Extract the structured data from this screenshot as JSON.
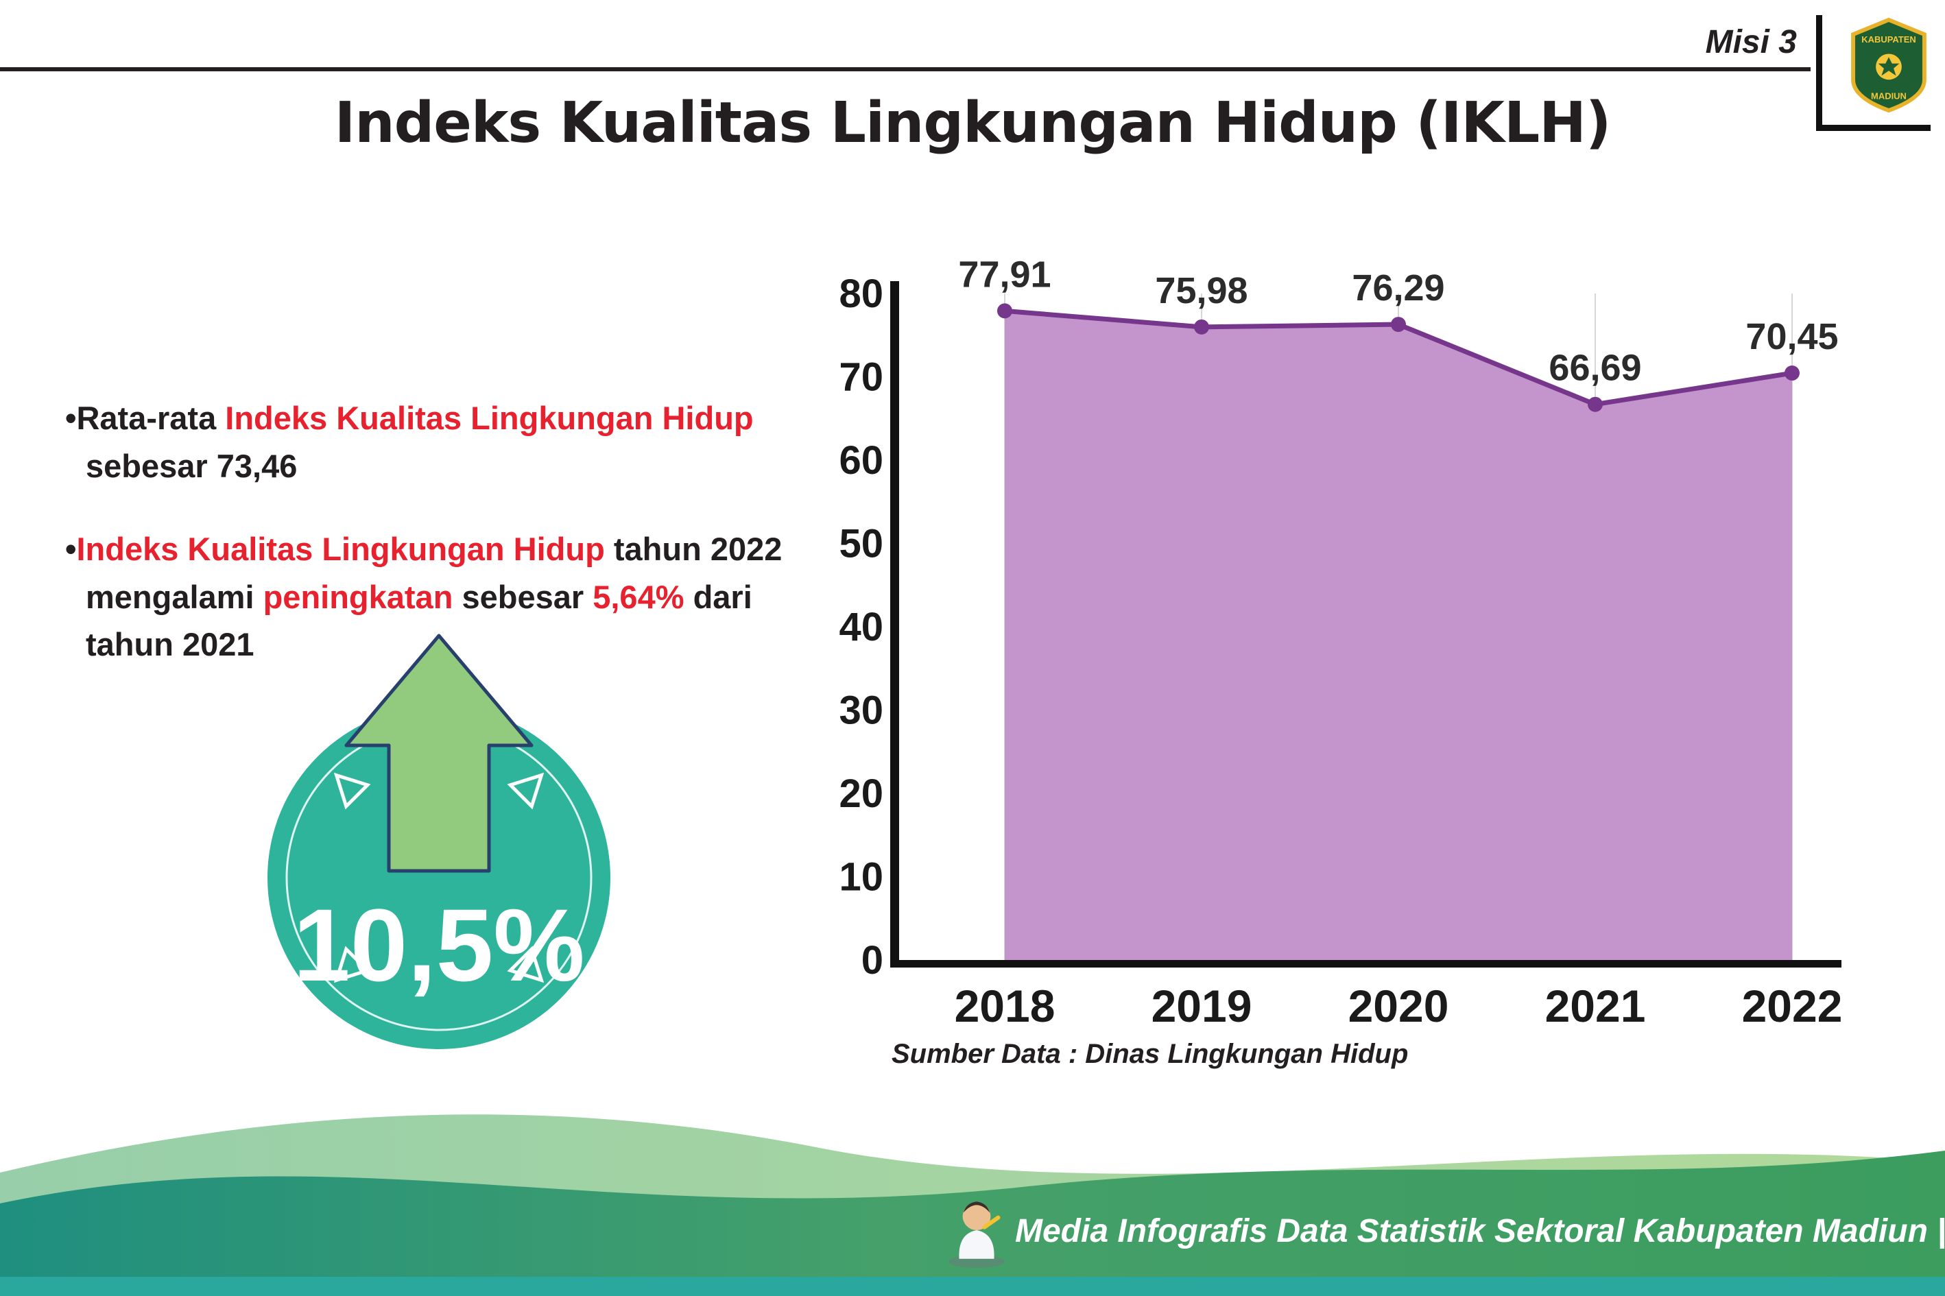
{
  "header": {
    "misi": "Misi 3",
    "title": "Indeks Kualitas Lingkungan Hidup (IKLH)",
    "logo": {
      "line1": "KABUPATEN",
      "line2": "MADIUN"
    }
  },
  "bullets": {
    "dot": "•",
    "b1_pre": "Rata-rata ",
    "b1_red": "Indeks Kualitas Lingkungan Hidup",
    "b1_post": " sebesar 73,46",
    "b2_red1": "Indeks Kualitas Lingkungan Hidup",
    "b2_mid1": " tahun 2022 mengalami ",
    "b2_red2": "peningkatan",
    "b2_mid2": " sebesar ",
    "b2_red3": "5,64%",
    "b2_post": " dari tahun 2021"
  },
  "badge": {
    "value": "10,5%",
    "circle_color": "#2db49b",
    "arrow_color": "#92cb7e",
    "arrow_outline": "#28406e"
  },
  "chart_data": {
    "type": "area",
    "categories": [
      "2018",
      "2019",
      "2020",
      "2021",
      "2022"
    ],
    "values": [
      77.91,
      75.98,
      76.29,
      66.69,
      70.45
    ],
    "value_labels": [
      "77,91",
      "75,98",
      "76,29",
      "66,69",
      "70,45"
    ],
    "title": "",
    "xlabel": "",
    "ylabel": "",
    "ylim": [
      0,
      80
    ],
    "yticks": [
      0,
      10,
      20,
      30,
      40,
      50,
      60,
      70,
      80
    ],
    "line_color": "#76368c",
    "fill_color": "#c495cd",
    "grid": "vertical-light",
    "legend": "none"
  },
  "source_text": "Sumber Data : Dinas Lingkungan Hidup",
  "footer": {
    "caption": "Media Infografis Data Statistik Sektoral Kabupaten Madiun |",
    "band_teal": "#1f8f7f",
    "band_green": "#5aa85f",
    "strip_teal": "#2aa89e"
  }
}
